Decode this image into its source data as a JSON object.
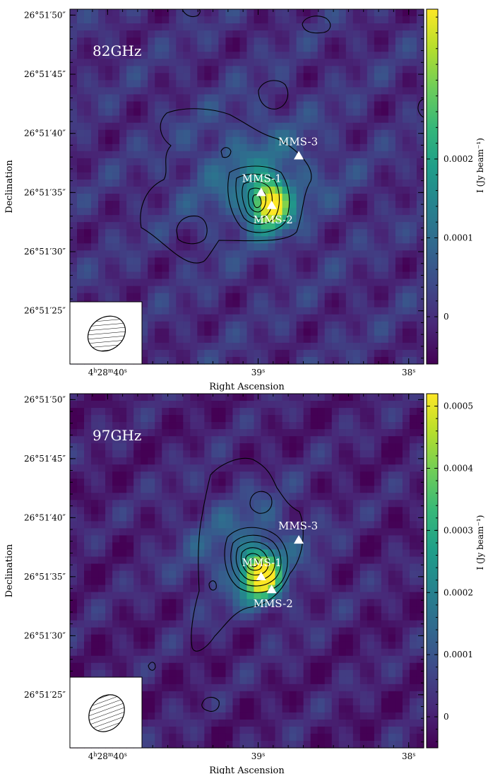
{
  "chart_data": [
    {
      "type": "heatmap",
      "panel_label": "82GHz",
      "xlabel": "Right Ascension",
      "ylabel": "Declination",
      "x_ticks": [
        {
          "value": 40,
          "label_html": "4<tspan baseline-shift=\"super\" font-size=\"8\">h</tspan>28<tspan baseline-shift=\"super\" font-size=\"8\">m</tspan>40<tspan baseline-shift=\"super\" font-size=\"8\">s</tspan>"
        },
        {
          "value": 39,
          "label_html": "39<tspan baseline-shift=\"super\" font-size=\"8\">s</tspan>"
        },
        {
          "value": 38,
          "label_html": "38<tspan baseline-shift=\"super\" font-size=\"8\">s</tspan>"
        }
      ],
      "y_ticks": [
        {
          "value": 50,
          "label": "26°51′50″"
        },
        {
          "value": 45,
          "label": "26°51′45″"
        },
        {
          "value": 40,
          "label": "26°51′40″"
        },
        {
          "value": 35,
          "label": "26°51′35″"
        },
        {
          "value": 30,
          "label": "26°51′30″"
        },
        {
          "value": 25,
          "label": "26°51′25″"
        }
      ],
      "xlim": [
        40.25,
        37.9
      ],
      "ylim": [
        20.5,
        50.5
      ],
      "colorbar": {
        "label": "I (Jy beam⁻¹)",
        "range": [
          -6e-05,
          0.00039
        ],
        "ticks": [
          {
            "value": 0,
            "label": "0"
          },
          {
            "value": 0.0001,
            "label": "0.0001"
          },
          {
            "value": 0.0002,
            "label": "0.0002"
          }
        ]
      },
      "sources": [
        {
          "name": "MMS-1",
          "ra_s": 38.98,
          "dec": 35.0,
          "label_position": "above"
        },
        {
          "name": "MMS-2",
          "ra_s": 38.91,
          "dec": 33.9,
          "label_position": "below"
        },
        {
          "name": "MMS-3",
          "ra_s": 38.73,
          "dec": 38.1,
          "label_position": "above"
        }
      ],
      "peak": {
        "ra_s": 38.92,
        "dec": 34.0
      },
      "beam": {
        "shape": "ellipse",
        "hatched": true,
        "box_position": "bottom-left"
      },
      "grid": false
    },
    {
      "type": "heatmap",
      "panel_label": "97GHz",
      "xlabel": "Right Ascension",
      "ylabel": "Declination",
      "x_ticks": [
        {
          "value": 40,
          "label_html": "4<tspan baseline-shift=\"super\" font-size=\"8\">h</tspan>28<tspan baseline-shift=\"super\" font-size=\"8\">m</tspan>40<tspan baseline-shift=\"super\" font-size=\"8\">s</tspan>"
        },
        {
          "value": 39,
          "label_html": "39<tspan baseline-shift=\"super\" font-size=\"8\">s</tspan>"
        },
        {
          "value": 38,
          "label_html": "38<tspan baseline-shift=\"super\" font-size=\"8\">s</tspan>"
        }
      ],
      "y_ticks": [
        {
          "value": 50,
          "label": "26°51′50″"
        },
        {
          "value": 45,
          "label": "26°51′45″"
        },
        {
          "value": 40,
          "label": "26°51′40″"
        },
        {
          "value": 35,
          "label": "26°51′35″"
        },
        {
          "value": 30,
          "label": "26°51′30″"
        },
        {
          "value": 25,
          "label": "26°51′25″"
        }
      ],
      "xlim": [
        40.25,
        37.9
      ],
      "ylim": [
        20.5,
        50.5
      ],
      "colorbar": {
        "label": "I (Jy beam⁻¹)",
        "range": [
          -5e-05,
          0.00052
        ],
        "ticks": [
          {
            "value": 0,
            "label": "0"
          },
          {
            "value": 0.0001,
            "label": "0.0001"
          },
          {
            "value": 0.0002,
            "label": "0.0002"
          },
          {
            "value": 0.0003,
            "label": "0.0003"
          },
          {
            "value": 0.0004,
            "label": "0.0004"
          },
          {
            "value": 0.0005,
            "label": "0.0005"
          }
        ]
      },
      "sources": [
        {
          "name": "MMS-1",
          "ra_s": 38.98,
          "dec": 35.0,
          "label_position": "above"
        },
        {
          "name": "MMS-2",
          "ra_s": 38.91,
          "dec": 33.9,
          "label_position": "below"
        },
        {
          "name": "MMS-3",
          "ra_s": 38.73,
          "dec": 38.1,
          "label_position": "above"
        }
      ],
      "peak": {
        "ra_s": 38.98,
        "dec": 35.0
      },
      "beam": {
        "shape": "ellipse",
        "hatched": true,
        "box_position": "bottom-left"
      },
      "grid": false
    }
  ],
  "colors": {
    "viridis_low": "#440154",
    "viridis_mid": "#21918c",
    "viridis_high": "#fde725",
    "contour": "#000000",
    "marker": "#ffffff"
  }
}
